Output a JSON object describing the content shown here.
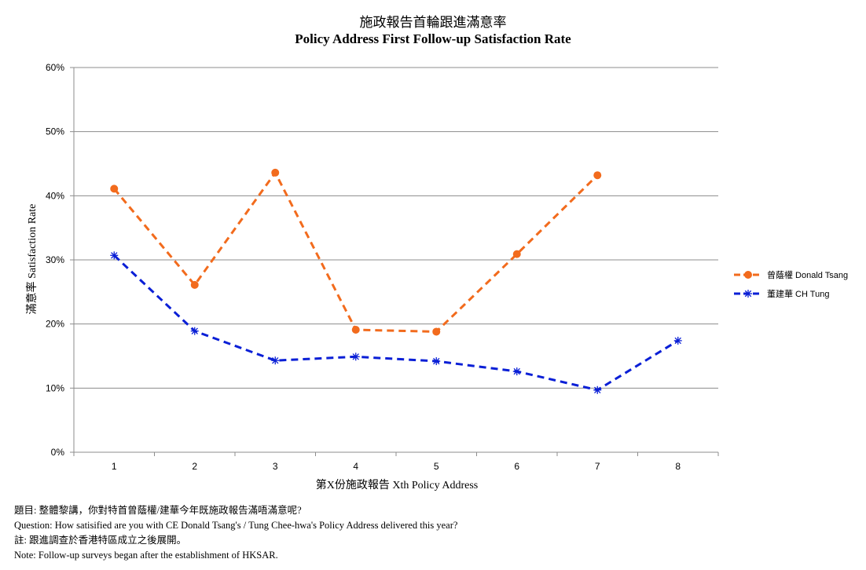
{
  "chart_data": {
    "type": "line",
    "title": "施政報告首輪跟進滿意率",
    "subtitle": "Policy Address First Follow-up Satisfaction Rate",
    "xlabel": "第X份施政報告 Xth Policy Address",
    "ylabel": "滿意率 Satisfaction Rate",
    "categories": [
      "1",
      "2",
      "3",
      "4",
      "5",
      "6",
      "7",
      "8"
    ],
    "ylim": [
      0,
      60
    ],
    "yticks": [
      "0%",
      "10%",
      "20%",
      "30%",
      "40%",
      "50%",
      "60%"
    ],
    "grid": true,
    "legend_position": "right",
    "series": [
      {
        "name": "曾蔭權 Donald Tsang",
        "color": "#f26b1d",
        "marker": "circle",
        "values": [
          41.1,
          26.1,
          43.6,
          19.1,
          18.8,
          30.9,
          43.2,
          null
        ]
      },
      {
        "name": "董建華 CH Tung",
        "color": "#0a1fd6",
        "marker": "asterisk",
        "values": [
          30.7,
          18.9,
          14.3,
          14.9,
          14.2,
          12.6,
          9.7,
          17.4
        ]
      }
    ]
  },
  "notes": [
    "題目: 整體黎講，你對特首曾蔭權/建華今年既施政報告滿唔滿意呢?",
    "Question: How satisified are you with CE  Donald Tsang's / Tung Chee-hwa's  Policy  Address  delivered this year?",
    " 註: 跟進調查於香港特區成立之後展開。",
    " Note: Follow-up surveys began after the establishment of HKSAR."
  ]
}
